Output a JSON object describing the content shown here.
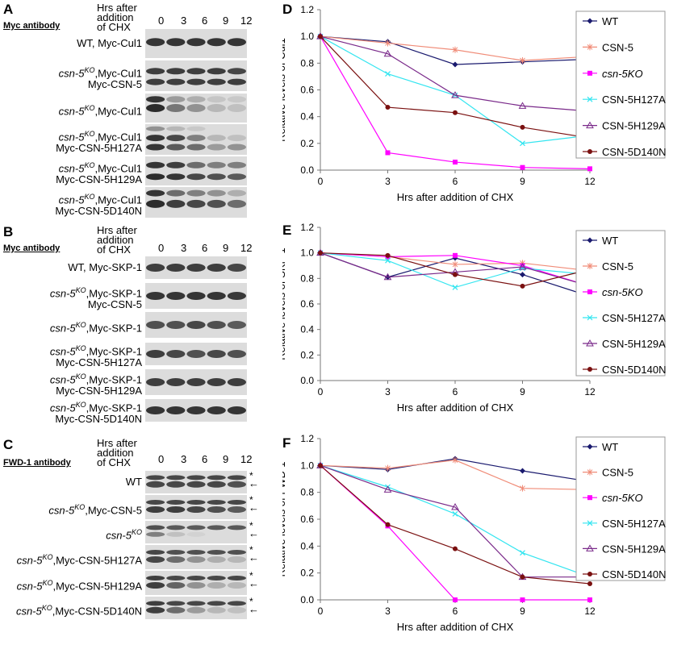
{
  "figure": {
    "A": {
      "letter": "A",
      "antibody": "Myc antibody",
      "hrs_header": [
        "Hrs after",
        "addition",
        "of CHX"
      ],
      "timepoints": [
        "0",
        "3",
        "6",
        "9",
        "12"
      ],
      "rows": [
        {
          "l1": {
            "base": "WT, Myc-Cul1",
            "sup": "",
            "rest": ""
          },
          "l2": ""
        },
        {
          "l1": {
            "base": "csn-5",
            "sup": "KO",
            "rest": ",Myc-Cul1"
          },
          "l2": "Myc-CSN-5"
        },
        {
          "l1": {
            "base": "csn-5",
            "sup": "KO",
            "rest": ",Myc-Cul1"
          },
          "l2": ""
        },
        {
          "l1": {
            "base": "csn-5",
            "sup": "KO",
            "rest": ",Myc-Cul1"
          },
          "l2": "Myc-CSN-5H127A"
        },
        {
          "l1": {
            "base": "csn-5",
            "sup": "KO",
            "rest": ",Myc-Cul1"
          },
          "l2": "Myc-CSN-5H129A"
        },
        {
          "l1": {
            "base": "csn-5",
            "sup": "KO",
            "rest": ",Myc-Cul1"
          },
          "l2": "Myc-CSN-5D140N"
        }
      ]
    },
    "B": {
      "letter": "B",
      "antibody": "Myc antibody",
      "hrs_header": [
        "Hrs after",
        "addition",
        "of CHX"
      ],
      "timepoints": [
        "0",
        "3",
        "6",
        "9",
        "12"
      ],
      "rows": [
        {
          "l1": {
            "base": "WT, Myc-SKP-1",
            "sup": "",
            "rest": ""
          },
          "l2": ""
        },
        {
          "l1": {
            "base": "csn-5",
            "sup": "KO",
            "rest": ",Myc-SKP-1"
          },
          "l2": "Myc-CSN-5"
        },
        {
          "l1": {
            "base": "csn-5",
            "sup": "KO",
            "rest": ",Myc-SKP-1"
          },
          "l2": ""
        },
        {
          "l1": {
            "base": "csn-5",
            "sup": "KO",
            "rest": ",Myc-SKP-1"
          },
          "l2": "Myc-CSN-5H127A"
        },
        {
          "l1": {
            "base": "csn-5",
            "sup": "KO",
            "rest": ",Myc-SKP-1"
          },
          "l2": "Myc-CSN-5H129A"
        },
        {
          "l1": {
            "base": "csn-5",
            "sup": "KO",
            "rest": ",Myc-SKP-1"
          },
          "l2": "Myc-CSN-5D140N"
        }
      ]
    },
    "C": {
      "letter": "C",
      "antibody": "FWD-1 antibody",
      "hrs_header": [
        "Hrs after",
        "addition",
        "of CHX"
      ],
      "timepoints": [
        "0",
        "3",
        "6",
        "9",
        "12"
      ],
      "star": "*",
      "arrow": "←",
      "rows": [
        {
          "l1": {
            "base": "WT",
            "sup": "",
            "rest": ""
          }
        },
        {
          "l1": {
            "base": "csn-5",
            "sup": "KO",
            "rest": ",Myc-CSN-5"
          }
        },
        {
          "l1": {
            "base": "csn-5",
            "sup": "KO",
            "rest": ""
          }
        },
        {
          "l1": {
            "base": "csn-5",
            "sup": "KO",
            "rest": ",Myc-CSN-5H127A"
          }
        },
        {
          "l1": {
            "base": "csn-5",
            "sup": "KO",
            "rest": ",Myc-CSN-5H129A"
          }
        },
        {
          "l1": {
            "base": "csn-5",
            "sup": "KO",
            "rest": ",Myc-CSN-5D140N"
          }
        }
      ]
    }
  },
  "colors": {
    "WT": "#1a1a6e",
    "CSN-5": "#f08c78",
    "csn-5KO": "#ff00ff",
    "CSN-5H127A": "#33e5f0",
    "CSN-5H129A": "#7a2a8a",
    "CSN-5D140N": "#7a1010"
  },
  "chart_data": [
    {
      "panel": "D",
      "type": "line",
      "xlabel": "Hrs after addition of CHX",
      "ylabel": "Relative levels of Cul1",
      "x": [
        0,
        3,
        6,
        9,
        12
      ],
      "ylim": [
        0,
        1.2
      ],
      "yticks": [
        "0.0",
        "0.2",
        "0.4",
        "0.6",
        "0.8",
        "1.0",
        "1.2"
      ],
      "legend": "right",
      "series": [
        {
          "name": "WT",
          "marker": "diamond",
          "values": [
            1.0,
            0.96,
            0.79,
            0.81,
            0.83
          ]
        },
        {
          "name": "CSN-5",
          "marker": "asterisk",
          "values": [
            1.0,
            0.95,
            0.9,
            0.82,
            0.85
          ]
        },
        {
          "name": "csn-5KO",
          "marker": "square",
          "italic": true,
          "values": [
            1.0,
            0.13,
            0.06,
            0.02,
            0.01
          ]
        },
        {
          "name": "CSN-5H127A",
          "marker": "x",
          "values": [
            1.0,
            0.72,
            0.56,
            0.2,
            0.26
          ]
        },
        {
          "name": "CSN-5H129A",
          "marker": "triangle",
          "values": [
            1.0,
            0.87,
            0.56,
            0.48,
            0.44
          ]
        },
        {
          "name": "CSN-5D140N",
          "marker": "circle",
          "values": [
            1.0,
            0.47,
            0.43,
            0.32,
            0.24
          ]
        }
      ]
    },
    {
      "panel": "E",
      "type": "line",
      "xlabel": "Hrs after addition of CHX",
      "ylabel": "Relative levels of SKP-1",
      "x": [
        0,
        3,
        6,
        9,
        12
      ],
      "ylim": [
        0,
        1.2
      ],
      "yticks": [
        "0.0",
        "0.2",
        "0.4",
        "0.6",
        "0.8",
        "1.0",
        "1.2"
      ],
      "legend": "right",
      "series": [
        {
          "name": "WT",
          "marker": "diamond",
          "values": [
            1.0,
            0.81,
            0.96,
            0.83,
            0.66
          ]
        },
        {
          "name": "CSN-5",
          "marker": "asterisk",
          "values": [
            1.0,
            0.97,
            0.91,
            0.92,
            0.86
          ]
        },
        {
          "name": "csn-5KO",
          "marker": "square",
          "italic": true,
          "values": [
            1.0,
            0.97,
            0.98,
            0.9,
            0.74
          ]
        },
        {
          "name": "CSN-5H127A",
          "marker": "x",
          "values": [
            1.0,
            0.94,
            0.73,
            0.88,
            0.83
          ]
        },
        {
          "name": "CSN-5H129A",
          "marker": "triangle",
          "values": [
            1.0,
            0.81,
            0.85,
            0.89,
            0.74
          ]
        },
        {
          "name": "CSN-5D140N",
          "marker": "circle",
          "values": [
            1.0,
            0.98,
            0.83,
            0.74,
            0.87
          ]
        }
      ]
    },
    {
      "panel": "F",
      "type": "line",
      "xlabel": "Hrs after addition of CHX",
      "ylabel": "Relative levels of FWD-1",
      "x": [
        0,
        3,
        6,
        9,
        12
      ],
      "ylim": [
        0,
        1.2
      ],
      "yticks": [
        "0.0",
        "0.2",
        "0.4",
        "0.6",
        "0.8",
        "1.0",
        "1.2"
      ],
      "legend": "right",
      "series": [
        {
          "name": "WT",
          "marker": "diamond",
          "values": [
            1.0,
            0.97,
            1.05,
            0.96,
            0.88
          ]
        },
        {
          "name": "CSN-5",
          "marker": "asterisk",
          "values": [
            1.0,
            0.98,
            1.04,
            0.83,
            0.82
          ]
        },
        {
          "name": "csn-5KO",
          "marker": "square",
          "italic": true,
          "values": [
            1.0,
            0.55,
            0.0,
            0.0,
            0.0
          ]
        },
        {
          "name": "CSN-5H127A",
          "marker": "x",
          "values": [
            1.0,
            0.84,
            0.64,
            0.35,
            0.17
          ]
        },
        {
          "name": "CSN-5H129A",
          "marker": "triangle",
          "values": [
            1.0,
            0.82,
            0.69,
            0.17,
            0.17
          ]
        },
        {
          "name": "CSN-5D140N",
          "marker": "circle",
          "values": [
            1.0,
            0.56,
            0.38,
            0.17,
            0.12
          ]
        }
      ]
    }
  ]
}
